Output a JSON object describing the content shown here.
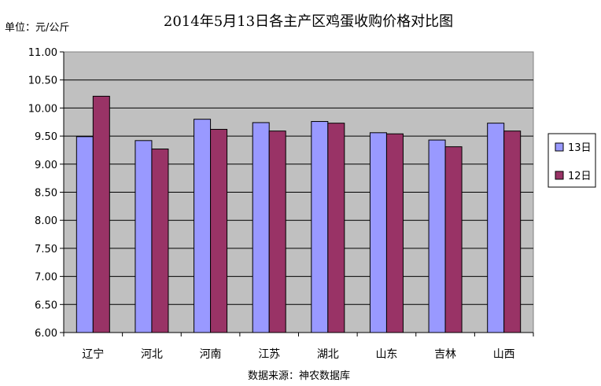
{
  "chart_data": {
    "type": "bar",
    "title": "2014年5月13日各主产区鸡蛋收购价格对比图",
    "unit_label": "单位：元/公斤",
    "source_label": "数据来源：神农数据库",
    "categories": [
      "辽宁",
      "河北",
      "河南",
      "江苏",
      "湖北",
      "山东",
      "吉林",
      "山西"
    ],
    "series": [
      {
        "name": "13日",
        "color": "#9999FF",
        "values": [
          9.49,
          9.42,
          9.8,
          9.74,
          9.76,
          9.56,
          9.43,
          9.73
        ]
      },
      {
        "name": "12日",
        "color": "#993366",
        "values": [
          10.21,
          9.27,
          9.62,
          9.59,
          9.73,
          9.54,
          9.31,
          9.59
        ]
      }
    ],
    "ylim": [
      6.0,
      11.0
    ],
    "yticks": [
      "6.00",
      "6.50",
      "7.00",
      "7.50",
      "8.00",
      "8.50",
      "9.00",
      "9.50",
      "10.00",
      "10.50",
      "11.00"
    ],
    "grid": true,
    "plot_background": "#C0C0C0",
    "legend_position": "right"
  }
}
